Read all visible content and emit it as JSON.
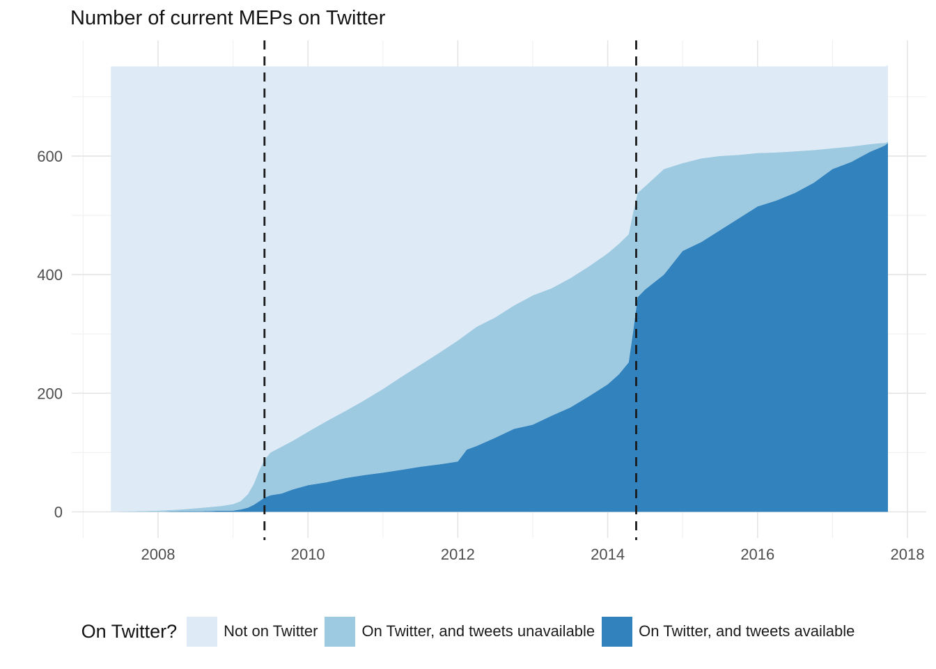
{
  "title": "Number of current MEPs on Twitter",
  "colors": {
    "not_on_twitter": "#deebf7",
    "tweets_unavailable": "#9ecae1",
    "tweets_available": "#3182bd",
    "grid_major": "#e4e4e4",
    "grid_minor": "#f1f1f1",
    "axis_text": "#4d4d4d",
    "title_text": "#111111",
    "vline": "#1a1a1a",
    "background": "#ffffff"
  },
  "legend": {
    "title": "On Twitter?",
    "items": [
      {
        "label": "Not on Twitter",
        "color": "#deebf7"
      },
      {
        "label": "On Twitter, and tweets unavailable",
        "color": "#9ecae1"
      },
      {
        "label": "On Twitter, and tweets available",
        "color": "#3182bd"
      }
    ]
  },
  "axes": {
    "x": {
      "ticks": [
        2008,
        2010,
        2012,
        2014,
        2016,
        2018
      ],
      "minor": [
        2007,
        2009,
        2011,
        2013,
        2015,
        2017
      ],
      "range": [
        2006.85,
        2018.25
      ]
    },
    "y": {
      "ticks": [
        0,
        200,
        400,
        600
      ],
      "minor": [
        100,
        300,
        500,
        700
      ],
      "range": [
        -44,
        795
      ]
    }
  },
  "vlines": [
    {
      "name": "ep-election-2009",
      "x": 2009.42
    },
    {
      "name": "ep-election-2014",
      "x": 2014.38
    }
  ],
  "chart_data": {
    "type": "area",
    "stacked": true,
    "title": "Number of current MEPs on Twitter",
    "xlabel": "",
    "ylabel": "",
    "legend_position": "bottom",
    "grid": true,
    "total_meps_top": 751,
    "x": [
      2007.37,
      2007.7,
      2008,
      2008.3,
      2008.6,
      2008.85,
      2009,
      2009.1,
      2009.2,
      2009.28,
      2009.35,
      2009.42,
      2009.5,
      2009.65,
      2009.8,
      2010,
      2010.25,
      2010.5,
      2010.75,
      2011,
      2011.25,
      2011.5,
      2011.75,
      2012,
      2012.12,
      2012.25,
      2012.5,
      2012.75,
      2013,
      2013.25,
      2013.5,
      2013.75,
      2014,
      2014.15,
      2014.28,
      2014.34,
      2014.4,
      2014.5,
      2014.75,
      2015,
      2015.25,
      2015.5,
      2015.75,
      2016,
      2016.25,
      2016.5,
      2016.75,
      2017,
      2017.25,
      2017.5,
      2017.65,
      2017.7,
      2017.74
    ],
    "series": [
      {
        "name": "On Twitter, and tweets available",
        "color": "#3182bd",
        "values": [
          0,
          0,
          0,
          1,
          1,
          2,
          2,
          4,
          7,
          12,
          18,
          24,
          28,
          31,
          38,
          45,
          50,
          57,
          62,
          66,
          71,
          76,
          80,
          85,
          105,
          111,
          125,
          140,
          147,
          162,
          176,
          195,
          215,
          232,
          252,
          305,
          362,
          375,
          400,
          440,
          455,
          475,
          495,
          515,
          525,
          538,
          555,
          578,
          590,
          607,
          615,
          618,
          622
        ]
      },
      {
        "name": "On Twitter, and tweets unavailable",
        "color": "#9ecae1",
        "values": [
          0,
          1,
          2,
          3,
          6,
          8,
          11,
          14,
          23,
          36,
          52,
          64,
          72,
          79,
          82,
          90,
          103,
          113,
          126,
          141,
          157,
          172,
          188,
          204,
          195,
          201,
          203,
          208,
          218,
          215,
          218,
          219,
          221,
          220,
          216,
          200,
          176,
          174,
          178,
          148,
          141,
          125,
          107,
          90,
          81,
          70,
          55,
          35,
          26,
          13,
          7,
          4,
          2
        ]
      },
      {
        "name": "Not on Twitter",
        "color": "#deebf7",
        "values": [
          751,
          750,
          749,
          747,
          744,
          741,
          738,
          733,
          721,
          703,
          681,
          663,
          651,
          641,
          631,
          616,
          598,
          581,
          563,
          544,
          523,
          503,
          483,
          462,
          451,
          439,
          423,
          403,
          386,
          374,
          357,
          337,
          315,
          299,
          283,
          246,
          213,
          202,
          173,
          163,
          155,
          151,
          149,
          146,
          145,
          143,
          141,
          138,
          135,
          131,
          129,
          129,
          129
        ]
      }
    ]
  }
}
